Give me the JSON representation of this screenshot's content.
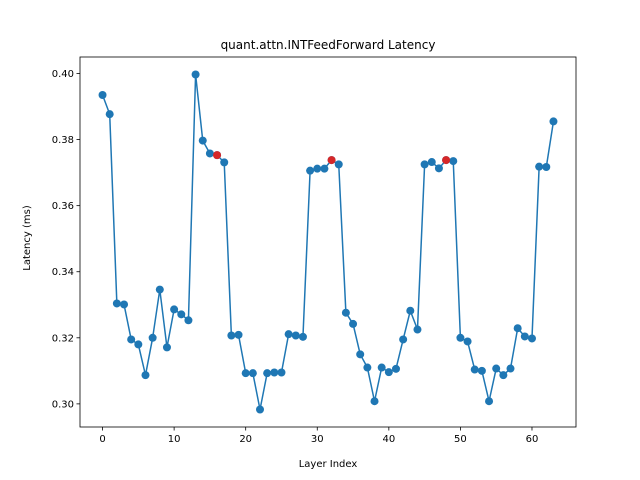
{
  "chart_data": {
    "type": "line",
    "title": "quant.attn.INTFeedForward Latency",
    "xlabel": "Layer Index",
    "ylabel": "Latency (ms)",
    "xlim": [
      -3.15,
      66.15
    ],
    "ylim": [
      0.293,
      0.405
    ],
    "xticks": [
      0,
      10,
      20,
      30,
      40,
      50,
      60
    ],
    "yticks": [
      0.3,
      0.32,
      0.34,
      0.36,
      0.38,
      0.4
    ],
    "ytick_labels": [
      "0.30",
      "0.32",
      "0.34",
      "0.36",
      "0.38",
      "0.40"
    ],
    "grid": false,
    "line_color": "#1f77b4",
    "highlight_color": "#d62728",
    "series": [
      {
        "x": [
          0,
          1,
          2,
          3,
          4,
          5,
          6,
          7,
          8,
          9,
          10,
          11,
          12,
          13,
          14,
          15,
          16,
          17,
          18,
          19,
          20,
          21,
          22,
          23,
          24,
          25,
          26,
          27,
          28,
          29,
          30,
          31,
          32,
          33,
          34,
          35,
          36,
          37,
          38,
          39,
          40,
          41,
          42,
          43,
          44,
          45,
          46,
          47,
          48,
          49,
          50,
          51,
          52,
          53,
          54,
          55,
          56,
          57,
          58,
          59,
          60,
          61,
          62,
          63
        ],
        "values": [
          0.3935,
          0.3877,
          0.3304,
          0.3301,
          0.3195,
          0.318,
          0.3087,
          0.32,
          0.3346,
          0.3171,
          0.3286,
          0.3271,
          0.3253,
          0.3997,
          0.3797,
          0.3758,
          0.3753,
          0.3731,
          0.3207,
          0.3209,
          0.3093,
          0.3093,
          0.2983,
          0.3093,
          0.3095,
          0.3095,
          0.3211,
          0.3207,
          0.3203,
          0.3706,
          0.3712,
          0.3712,
          0.3738,
          0.3725,
          0.3276,
          0.3242,
          0.315,
          0.311,
          0.3008,
          0.311,
          0.3096,
          0.3106,
          0.3195,
          0.3282,
          0.3225,
          0.3725,
          0.3732,
          0.3713,
          0.3738,
          0.3735,
          0.32,
          0.3189,
          0.3104,
          0.31,
          0.3008,
          0.3107,
          0.3087,
          0.3107,
          0.3229,
          0.3204,
          0.3198,
          0.3718,
          0.3717,
          0.3855
        ]
      }
    ],
    "highlighted_points": [
      {
        "x": 16,
        "y": 0.3753
      },
      {
        "x": 32,
        "y": 0.3738
      },
      {
        "x": 48,
        "y": 0.3738
      }
    ]
  }
}
